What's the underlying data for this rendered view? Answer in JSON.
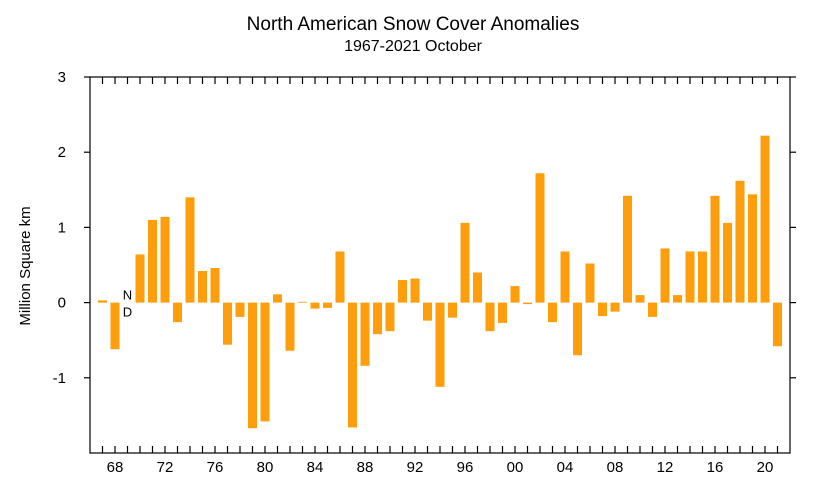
{
  "chart_data": {
    "type": "bar",
    "title": "North American Snow Cover Anomalies",
    "subtitle": "1967-2021 October",
    "xlabel": "",
    "ylabel": "Million Square km",
    "ylim": [
      -2,
      3
    ],
    "xlim": [
      1966,
      2022
    ],
    "bar_color": "#ff9e0d",
    "grid": false,
    "y_ticks": [
      -1,
      0,
      1,
      2,
      3
    ],
    "y_tick_labels": [
      "-1",
      "0",
      "1",
      "2",
      "3"
    ],
    "x_ticks": [
      1968,
      1972,
      1976,
      1980,
      1984,
      1988,
      1992,
      1996,
      2000,
      2004,
      2008,
      2012,
      2016,
      2020
    ],
    "x_tick_labels": [
      "68",
      "72",
      "76",
      "80",
      "84",
      "88",
      "92",
      "96",
      "00",
      "04",
      "08",
      "12",
      "16",
      "20"
    ],
    "no_data": {
      "year": 1969,
      "label_top": "N",
      "label_bottom": "D"
    },
    "years": [
      1967,
      1968,
      1970,
      1971,
      1972,
      1973,
      1974,
      1975,
      1976,
      1977,
      1978,
      1979,
      1980,
      1981,
      1982,
      1983,
      1984,
      1985,
      1986,
      1987,
      1988,
      1989,
      1990,
      1991,
      1992,
      1993,
      1994,
      1995,
      1996,
      1997,
      1998,
      1999,
      2000,
      2001,
      2002,
      2003,
      2004,
      2005,
      2006,
      2007,
      2008,
      2009,
      2010,
      2011,
      2012,
      2013,
      2014,
      2015,
      2016,
      2017,
      2018,
      2019,
      2020,
      2021
    ],
    "values": [
      0.03,
      -0.62,
      0.64,
      1.1,
      1.14,
      -0.26,
      1.4,
      0.42,
      0.46,
      -0.56,
      -0.19,
      -1.67,
      -1.58,
      0.11,
      -0.64,
      0.01,
      -0.08,
      -0.07,
      0.68,
      -1.66,
      -0.84,
      -0.42,
      -0.38,
      0.3,
      0.32,
      -0.24,
      -1.12,
      -0.2,
      1.06,
      0.4,
      -0.38,
      -0.27,
      0.22,
      -0.02,
      1.72,
      -0.26,
      0.68,
      -0.7,
      0.52,
      -0.18,
      -0.12,
      1.42,
      0.1,
      -0.19,
      0.72,
      0.1,
      0.68,
      0.68,
      1.42,
      1.06,
      1.62,
      1.44,
      2.22,
      -0.58
    ]
  }
}
